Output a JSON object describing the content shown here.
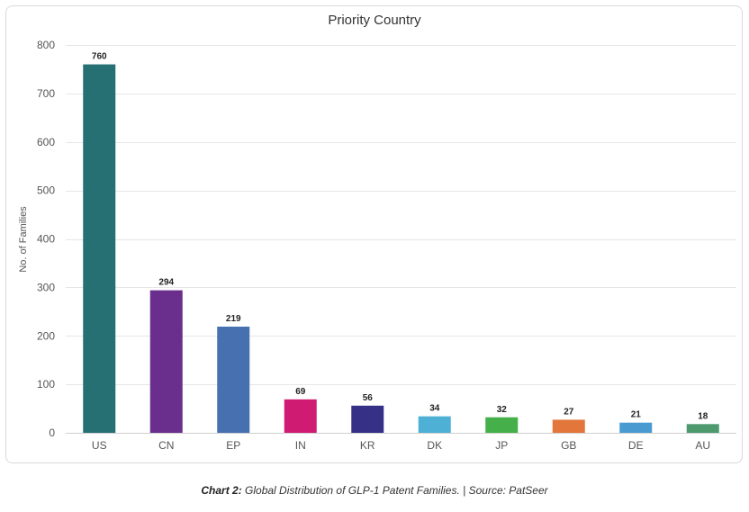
{
  "chart_data": {
    "type": "bar",
    "title": "Priority Country",
    "xlabel": "",
    "ylabel": "No. of Families",
    "ylim": [
      0,
      800
    ],
    "yticks": [
      0,
      100,
      200,
      300,
      400,
      500,
      600,
      700,
      800
    ],
    "grid": true,
    "categories": [
      "US",
      "CN",
      "EP",
      "IN",
      "KR",
      "DK",
      "JP",
      "GB",
      "DE",
      "AU"
    ],
    "values": [
      760,
      294,
      219,
      69,
      56,
      34,
      32,
      27,
      21,
      18
    ],
    "colors": [
      "#267074",
      "#6a2f8c",
      "#4670b0",
      "#d01b73",
      "#363087",
      "#4eb0d5",
      "#45b04a",
      "#e3763a",
      "#4a9ad2",
      "#4d9a6f"
    ],
    "data_labels": true
  },
  "caption": {
    "label": "Chart 2:",
    "text": " Global Distribution of GLP-1 Patent Families. | Source: PatSeer"
  }
}
